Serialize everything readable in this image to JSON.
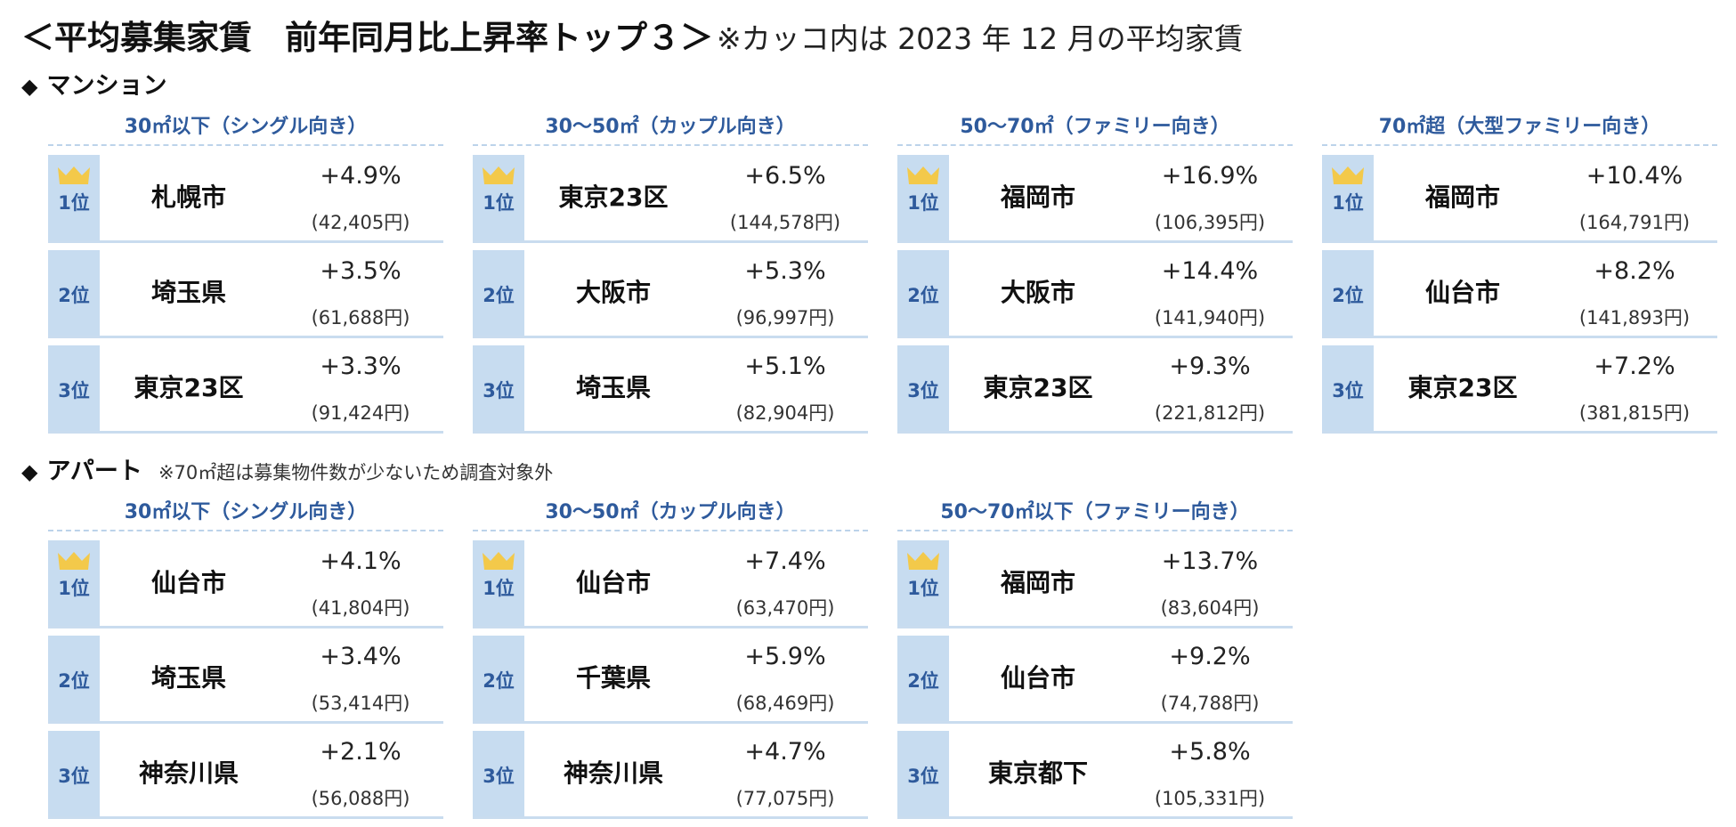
{
  "title": {
    "main": "＜平均募集家賃　前年同月比上昇率トップ３＞",
    "note": "※カッコ内は 2023 年 12 月の平均家賃"
  },
  "mansion": {
    "label": "マンション",
    "tables": [
      {
        "category": "30㎡以下（シングル向き）",
        "rows": [
          {
            "rank": "1位",
            "city": "札幌市",
            "change": "+4.9%",
            "rent": "(42,405円)"
          },
          {
            "rank": "2位",
            "city": "埼玉県",
            "change": "+3.5%",
            "rent": "(61,688円)"
          },
          {
            "rank": "3位",
            "city": "東京23区",
            "change": "+3.3%",
            "rent": "(91,424円)"
          }
        ]
      },
      {
        "category": "30～50㎡（カップル向き）",
        "rows": [
          {
            "rank": "1位",
            "city": "東京23区",
            "change": "+6.5%",
            "rent": "(144,578円)"
          },
          {
            "rank": "2位",
            "city": "大阪市",
            "change": "+5.3%",
            "rent": "(96,997円)"
          },
          {
            "rank": "3位",
            "city": "埼玉県",
            "change": "+5.1%",
            "rent": "(82,904円)"
          }
        ]
      },
      {
        "category": "50～70㎡（ファミリー向き）",
        "rows": [
          {
            "rank": "1位",
            "city": "福岡市",
            "change": "+16.9%",
            "rent": "(106,395円)"
          },
          {
            "rank": "2位",
            "city": "大阪市",
            "change": "+14.4%",
            "rent": "(141,940円)"
          },
          {
            "rank": "3位",
            "city": "東京23区",
            "change": "+9.3%",
            "rent": "(221,812円)"
          }
        ]
      },
      {
        "category": "70㎡超（大型ファミリー向き）",
        "rows": [
          {
            "rank": "1位",
            "city": "福岡市",
            "change": "+10.4%",
            "rent": "(164,791円)"
          },
          {
            "rank": "2位",
            "city": "仙台市",
            "change": "+8.2%",
            "rent": "(141,893円)"
          },
          {
            "rank": "3位",
            "city": "東京23区",
            "change": "+7.2%",
            "rent": "(381,815円)"
          }
        ]
      }
    ]
  },
  "apartment": {
    "label": "アパート",
    "note": "※70㎡超は募集物件数が少ないため調査対象外",
    "tables": [
      {
        "category": "30㎡以下（シングル向き）",
        "rows": [
          {
            "rank": "1位",
            "city": "仙台市",
            "change": "+4.1%",
            "rent": "(41,804円)"
          },
          {
            "rank": "2位",
            "city": "埼玉県",
            "change": "+3.4%",
            "rent": "(53,414円)"
          },
          {
            "rank": "3位",
            "city": "神奈川県",
            "change": "+2.1%",
            "rent": "(56,088円)"
          }
        ]
      },
      {
        "category": "30～50㎡（カップル向き）",
        "rows": [
          {
            "rank": "1位",
            "city": "仙台市",
            "change": "+7.4%",
            "rent": "(63,470円)"
          },
          {
            "rank": "2位",
            "city": "千葉県",
            "change": "+5.9%",
            "rent": "(68,469円)"
          },
          {
            "rank": "3位",
            "city": "神奈川県",
            "change": "+4.7%",
            "rent": "(77,075円)"
          }
        ]
      },
      {
        "category": "50～70㎡以下（ファミリー向き）",
        "rows": [
          {
            "rank": "1位",
            "city": "福岡市",
            "change": "+13.7%",
            "rent": "(83,604円)"
          },
          {
            "rank": "2位",
            "city": "仙台市",
            "change": "+9.2%",
            "rent": "(74,788円)"
          },
          {
            "rank": "3位",
            "city": "東京都下",
            "change": "+5.8%",
            "rent": "(105,331円)"
          }
        ]
      }
    ]
  },
  "colors": {
    "rank_cell": "#c7dcf0",
    "rank_text": "#2e5a9c",
    "crown": "#f3c94a",
    "row_line": "#c9dcef"
  },
  "icons": {
    "crown": "crown-icon",
    "section_marker": "diamond-icon"
  }
}
